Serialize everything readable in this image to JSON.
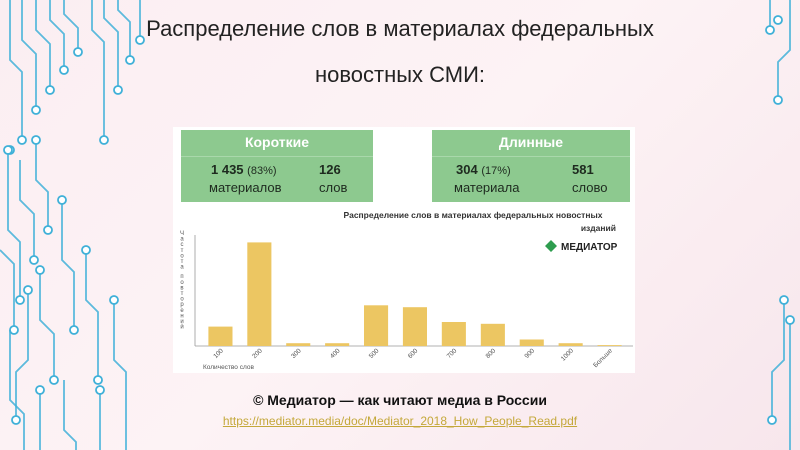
{
  "slide": {
    "title_line1": "Распределение слов в материалах федеральных",
    "title_line2": "новостных СМИ:",
    "caption": "© Медиатор — как читают медиа в России",
    "source_url": "https://mediator.media/doc/Mediator_2018_How_People_Read.pdf"
  },
  "stats": {
    "short": {
      "title": "Короткие",
      "count": "1 435",
      "percent": "(83%)",
      "count_label": "материалов",
      "words": "126",
      "words_label": "слов"
    },
    "long": {
      "title": "Длинные",
      "count": "304",
      "percent": "(17%)",
      "count_label": "материала",
      "words": "581",
      "words_label": "слово"
    }
  },
  "brand": {
    "name": "МЕДИАТОР"
  },
  "colors": {
    "bar": "#ecc662",
    "stat_box": "#8dc98f",
    "accent": "#3fb0d8"
  },
  "chart_data": {
    "type": "bar",
    "title": "Распределение слов в материалах федеральных новостных изданий",
    "xlabel": "Количество слов",
    "ylabel": "Частота повторений",
    "categories": [
      "100",
      "200",
      "300",
      "400",
      "500",
      "600",
      "700",
      "800",
      "900",
      "1000",
      "Больше"
    ],
    "values": [
      21,
      112,
      3,
      3,
      44,
      42,
      26,
      24,
      7,
      3,
      1
    ],
    "ylim": [
      0,
      120
    ],
    "grid": false,
    "legend": "none"
  }
}
